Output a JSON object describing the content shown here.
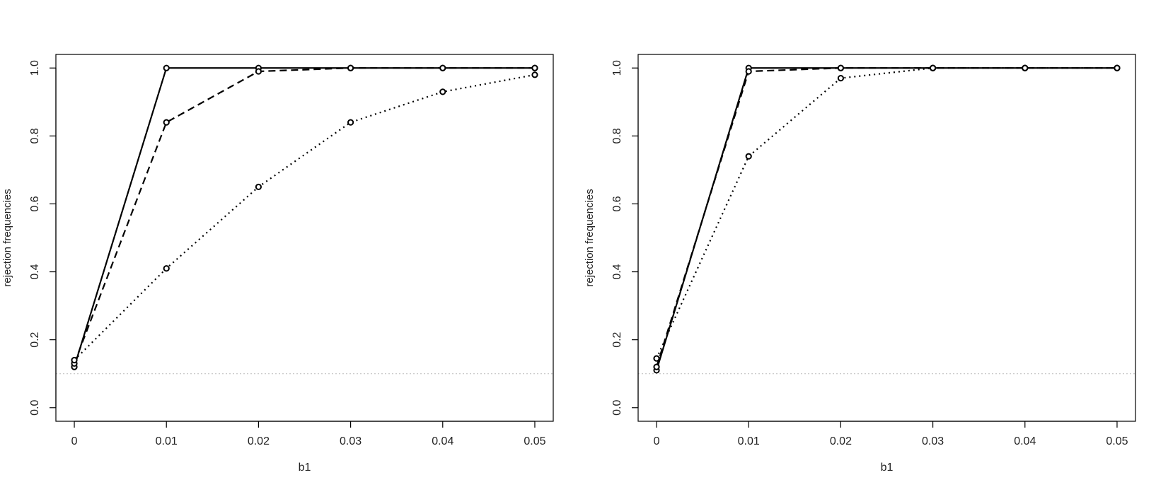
{
  "chart_data": [
    {
      "type": "line",
      "title": "",
      "xlabel": "b1",
      "ylabel": "rejection frequencies",
      "xlim": [
        0,
        0.05
      ],
      "ylim": [
        0,
        1.0
      ],
      "x_ticks": [
        0,
        0.01,
        0.02,
        0.03,
        0.04,
        0.05
      ],
      "x_tick_labels": [
        "0",
        "0.01",
        "0.02",
        "0.03",
        "0.04",
        "0.05"
      ],
      "y_ticks": [
        0,
        0.2,
        0.4,
        0.6,
        0.8,
        1.0
      ],
      "y_tick_labels": [
        "0.0",
        "0.2",
        "0.4",
        "0.6",
        "0.8",
        "1.0"
      ],
      "grid": false,
      "reference_line": {
        "y": 0.1,
        "style": "dotted",
        "color": "#bbbbbb"
      },
      "series": [
        {
          "style": "solid",
          "x": [
            0,
            0.01,
            0.02,
            0.03,
            0.04,
            0.05
          ],
          "y": [
            0.12,
            1.0,
            1.0,
            1.0,
            1.0,
            1.0
          ]
        },
        {
          "style": "dashed",
          "x": [
            0,
            0.01,
            0.02,
            0.03,
            0.04,
            0.05
          ],
          "y": [
            0.13,
            0.84,
            0.99,
            1.0,
            1.0,
            1.0
          ]
        },
        {
          "style": "dotted",
          "x": [
            0,
            0.01,
            0.02,
            0.03,
            0.04,
            0.05
          ],
          "y": [
            0.14,
            0.41,
            0.65,
            0.84,
            0.93,
            0.98
          ]
        }
      ]
    },
    {
      "type": "line",
      "title": "",
      "xlabel": "b1",
      "ylabel": "rejection frequencies",
      "xlim": [
        0,
        0.05
      ],
      "ylim": [
        0,
        1.0
      ],
      "x_ticks": [
        0,
        0.01,
        0.02,
        0.03,
        0.04,
        0.05
      ],
      "x_tick_labels": [
        "0",
        "0.01",
        "0.02",
        "0.03",
        "0.04",
        "0.05"
      ],
      "y_ticks": [
        0,
        0.2,
        0.4,
        0.6,
        0.8,
        1.0
      ],
      "y_tick_labels": [
        "0.0",
        "0.2",
        "0.4",
        "0.6",
        "0.8",
        "1.0"
      ],
      "grid": false,
      "reference_line": {
        "y": 0.1,
        "style": "dotted",
        "color": "#bbbbbb"
      },
      "series": [
        {
          "style": "solid",
          "x": [
            0,
            0.01,
            0.02,
            0.03,
            0.04,
            0.05
          ],
          "y": [
            0.11,
            1.0,
            1.0,
            1.0,
            1.0,
            1.0
          ]
        },
        {
          "style": "dashed",
          "x": [
            0,
            0.01,
            0.02,
            0.03,
            0.04,
            0.05
          ],
          "y": [
            0.12,
            0.99,
            1.0,
            1.0,
            1.0,
            1.0
          ]
        },
        {
          "style": "dotted",
          "x": [
            0,
            0.01,
            0.02,
            0.03,
            0.04,
            0.05
          ],
          "y": [
            0.145,
            0.74,
            0.97,
            1.0,
            1.0,
            1.0
          ]
        }
      ]
    }
  ]
}
